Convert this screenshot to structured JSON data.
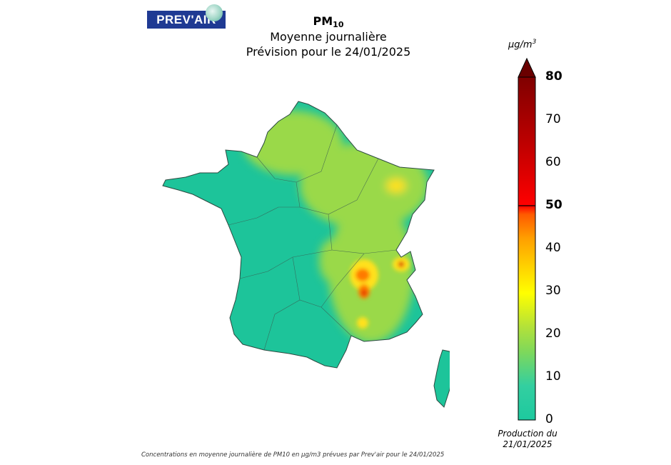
{
  "logo": {
    "text": "PREV'AIR"
  },
  "header": {
    "pollutant": "PM",
    "pollutant_sub": "10",
    "line2": "Moyenne journalière",
    "line3": "Prévision pour le 24/01/2025"
  },
  "colorbar": {
    "unit": "µg/m",
    "unit_sup": "3",
    "ticks": [
      "80",
      "70",
      "60",
      "50",
      "40",
      "30",
      "20",
      "10",
      "0"
    ],
    "range": [
      0,
      80
    ],
    "colors": [
      "#1dc99f",
      "#33cfa0",
      "#7fd85a",
      "#b2e13a",
      "#ffff00",
      "#ffd000",
      "#ff9f00",
      "#ff5a00",
      "#ff0000",
      "#c00000",
      "#800000"
    ]
  },
  "production": {
    "line1": "Production du",
    "line2": "21/01/2025"
  },
  "footer": "Concentrations en moyenne journalière de PM10 en µg/m3 prévues par Prev'air pour le 24/01/2025",
  "map_colors": {
    "base": "#1dc49a",
    "moderate": "#9ad94a",
    "high": "#ffe11a",
    "very_high": "#ff7a00",
    "peak": "#d60000"
  }
}
